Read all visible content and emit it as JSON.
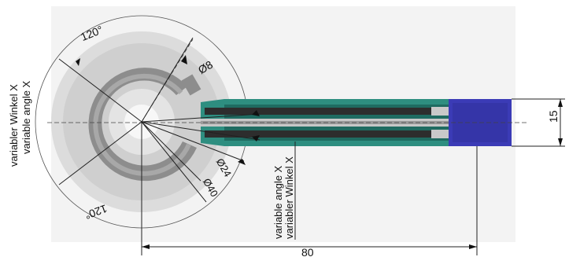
{
  "drawing": {
    "labels": {
      "angle_top": "120°",
      "angle_bottom": "120°",
      "dia_small": "Ø8",
      "dia_24": "Ø24",
      "dia_40": "Ø40",
      "width": "15",
      "length": "80",
      "variable_angle_left_de": "variabler Winkel X",
      "variable_angle_left_en": "variable angle X",
      "variable_angle_bottom_en": "variable angle  X",
      "variable_angle_bottom_de": "variabler Winkel X"
    },
    "colors": {
      "background_panel": "#f2f2f2",
      "sensor_light": "#d4d4d4",
      "sensor_mid": "#b9b9b9",
      "track_dark": "#8f8f8f",
      "track_ring": "#a9a9a9",
      "teal": "#2a8f7f",
      "teal_dark": "#1b5f56",
      "stripe_dark": "#2b2b2b",
      "connector_blue": "#3a3ab8",
      "dim_line": "#222222"
    }
  }
}
